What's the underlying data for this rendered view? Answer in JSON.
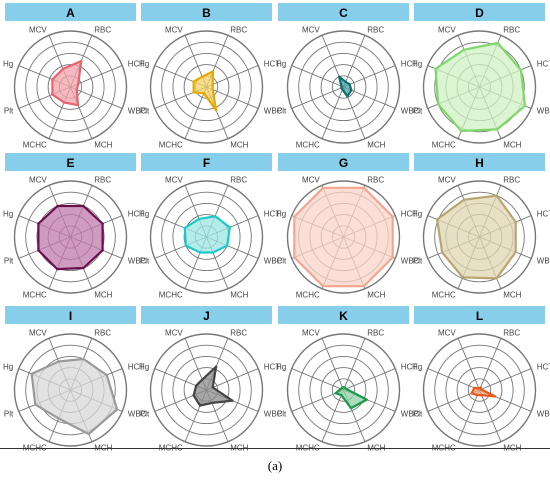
{
  "figure": {
    "caption": "(a)",
    "header_color": "#87CEEB",
    "grid_color": "#777777",
    "axis_labels": [
      "MCV",
      "RBC",
      "HCT",
      "WBC",
      "MCH",
      "MCHC",
      "Plt",
      "Hg"
    ],
    "rings": 5
  },
  "chart_data": [
    {
      "type": "radar",
      "title": "A",
      "color": "#E8636F",
      "fill": "#F2A2AA",
      "axes": [
        "MCV",
        "RBC",
        "HCT",
        "WBC",
        "MCH",
        "MCHC",
        "Plt",
        "Hg"
      ],
      "values": [
        0.35,
        0.5,
        0.15,
        0.12,
        0.35,
        0.3,
        0.35,
        0.35
      ]
    },
    {
      "type": "radar",
      "title": "B",
      "color": "#E8A800",
      "fill": "#F5D26A",
      "axes": [
        "MCV",
        "RBC",
        "HCT",
        "WBC",
        "MCH",
        "MCHC",
        "Plt",
        "Hg"
      ],
      "values": [
        0.2,
        0.3,
        0.12,
        0.12,
        0.45,
        0.12,
        0.25,
        0.25
      ]
    },
    {
      "type": "radar",
      "title": "C",
      "color": "#0E6E6E",
      "fill": "#4FA3A3",
      "axes": [
        "MCV",
        "RBC",
        "HCT",
        "WBC",
        "MCH",
        "MCHC",
        "Plt",
        "Hg"
      ],
      "values": [
        0.2,
        0.1,
        0.12,
        0.15,
        0.18,
        0.05,
        0.04,
        0.04
      ]
    },
    {
      "type": "radar",
      "title": "D",
      "color": "#7FD86A",
      "fill": "#CFF0C2",
      "axes": [
        "MCV",
        "RBC",
        "HCT",
        "WBC",
        "MCH",
        "MCHC",
        "Plt",
        "Hg"
      ],
      "values": [
        0.72,
        0.85,
        0.8,
        0.88,
        0.82,
        0.85,
        0.8,
        0.85
      ]
    },
    {
      "type": "radar",
      "title": "E",
      "color": "#6B0F4F",
      "fill": "#C07AAC",
      "axes": [
        "MCV",
        "RBC",
        "HCT",
        "WBC",
        "MCH",
        "MCHC",
        "Plt",
        "Hg"
      ],
      "values": [
        0.6,
        0.6,
        0.62,
        0.62,
        0.6,
        0.62,
        0.62,
        0.62
      ]
    },
    {
      "type": "radar",
      "title": "F",
      "color": "#1EC8C8",
      "fill": "#9BE6E3",
      "axes": [
        "MCV",
        "RBC",
        "HCT",
        "WBC",
        "MCH",
        "MCHC",
        "Plt",
        "Hg"
      ],
      "values": [
        0.35,
        0.4,
        0.45,
        0.4,
        0.3,
        0.3,
        0.4,
        0.42
      ]
    },
    {
      "type": "radar",
      "title": "G",
      "color": "#F4A58F",
      "fill": "#F9D3C7",
      "axes": [
        "MCV",
        "RBC",
        "HCT",
        "WBC",
        "MCH",
        "MCHC",
        "Plt",
        "Hg"
      ],
      "values": [
        0.95,
        0.95,
        0.95,
        0.95,
        0.95,
        0.95,
        0.95,
        0.95
      ]
    },
    {
      "type": "radar",
      "title": "H",
      "color": "#B8A670",
      "fill": "#E0D5B1",
      "axes": [
        "MCV",
        "RBC",
        "HCT",
        "WBC",
        "MCH",
        "MCHC",
        "Plt",
        "Hg"
      ],
      "values": [
        0.72,
        0.8,
        0.7,
        0.7,
        0.8,
        0.78,
        0.72,
        0.82
      ]
    },
    {
      "type": "radar",
      "title": "I",
      "color": "#9A9A9A",
      "fill": "#D8D8D8",
      "axes": [
        "MCV",
        "RBC",
        "HCT",
        "WBC",
        "MCH",
        "MCHC",
        "Plt",
        "Hg"
      ],
      "values": [
        0.55,
        0.6,
        0.7,
        0.9,
        0.85,
        0.55,
        0.68,
        0.75
      ]
    },
    {
      "type": "radar",
      "title": "J",
      "color": "#444444",
      "fill": "#8A8A8A",
      "axes": [
        "MCV",
        "RBC",
        "HCT",
        "WBC",
        "MCH",
        "MCHC",
        "Plt",
        "Hg"
      ],
      "values": [
        0.2,
        0.45,
        0.12,
        0.5,
        0.25,
        0.3,
        0.25,
        0.2
      ]
    },
    {
      "type": "radar",
      "title": "K",
      "color": "#1A9A4A",
      "fill": "#8FD1A6",
      "axes": [
        "MCV",
        "RBC",
        "HCT",
        "WBC",
        "MCH",
        "MCHC",
        "Plt",
        "Hg"
      ],
      "values": [
        0.05,
        0.05,
        0.05,
        0.45,
        0.35,
        0.1,
        0.15,
        0.05
      ]
    },
    {
      "type": "radar",
      "title": "L",
      "color": "#E85A1A",
      "fill": "#F2A37A",
      "axes": [
        "MCV",
        "RBC",
        "HCT",
        "WBC",
        "MCH",
        "MCHC",
        "Plt",
        "Hg"
      ],
      "values": [
        0.03,
        0.05,
        0.03,
        0.3,
        0.1,
        0.1,
        0.15,
        0.1
      ]
    }
  ]
}
